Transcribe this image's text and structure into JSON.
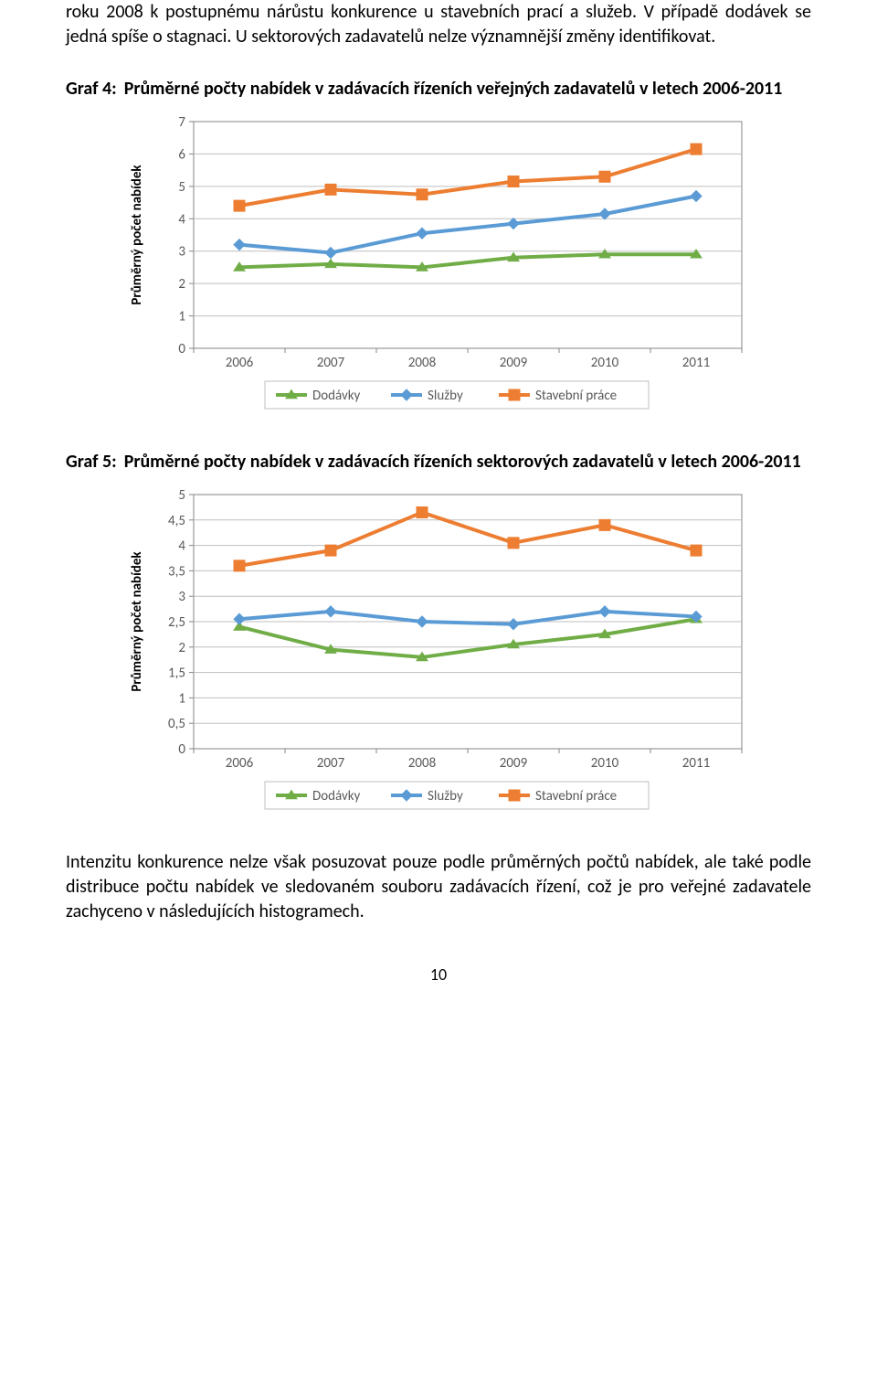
{
  "para1": "roku 2008 k postupnému nárůstu konkurence u stavebních prací a služeb. V případě dodávek se jedná spíše o stagnaci. U sektorových zadavatelů nelze významnější změny identifikovat.",
  "graf4": {
    "prefix": "Graf 4:",
    "rest": "Průměrné počty nabídek v zadávacích řízeních veřejných zadavatelů v letech 2006-2011"
  },
  "graf5": {
    "prefix": "Graf 5:",
    "rest": "Průměrné počty nabídek v zadávacích řízeních sektorových zadavatelů v letech 2006-2011"
  },
  "para2": "Intenzitu konkurence nelze však posuzovat pouze podle průměrných počtů nabídek, ale také podle distribuce počtu nabídek ve sledovaném souboru zadávacích řízení, což je pro veřejné zadavatele zachyceno v následujících histogramech.",
  "page_number": "10",
  "chart4": {
    "type": "line",
    "categories": [
      "2006",
      "2007",
      "2008",
      "2009",
      "2010",
      "2011"
    ],
    "series": [
      {
        "name": "Dodávky",
        "color": "#70ad47",
        "marker": "triangle",
        "values": [
          2.5,
          2.6,
          2.5,
          2.8,
          2.9,
          2.9
        ]
      },
      {
        "name": "Služby",
        "color": "#5b9bd5",
        "marker": "diamond",
        "values": [
          3.2,
          2.95,
          3.55,
          3.85,
          4.15,
          4.7
        ]
      },
      {
        "name": "Stavební práce",
        "color": "#ed7d31",
        "marker": "square",
        "values": [
          4.4,
          4.9,
          4.75,
          5.15,
          5.3,
          6.15
        ]
      }
    ],
    "y_axis_label": "Průměrný počet nabídek",
    "ylim": [
      0,
      7
    ],
    "ytick_step": 1,
    "yticks": [
      "0",
      "1",
      "2",
      "3",
      "4",
      "5",
      "6",
      "7"
    ],
    "background_color": "#ffffff",
    "plot_bg": "#ffffff",
    "grid_color": "#bfbfbf",
    "axis_color": "#868686",
    "legend_border": "#bfbfbf",
    "tick_font_color": "#595959",
    "line_width": 4,
    "marker_size": 8
  },
  "chart5": {
    "type": "line",
    "categories": [
      "2006",
      "2007",
      "2008",
      "2009",
      "2010",
      "2011"
    ],
    "series": [
      {
        "name": "Dodávky",
        "color": "#70ad47",
        "marker": "triangle",
        "values": [
          2.4,
          1.95,
          1.8,
          2.05,
          2.25,
          2.55
        ]
      },
      {
        "name": "Služby",
        "color": "#5b9bd5",
        "marker": "diamond",
        "values": [
          2.55,
          2.7,
          2.5,
          2.45,
          2.7,
          2.6
        ]
      },
      {
        "name": "Stavební práce",
        "color": "#ed7d31",
        "marker": "square",
        "values": [
          3.6,
          3.9,
          4.65,
          4.05,
          4.4,
          3.9
        ]
      }
    ],
    "y_axis_label": "Průměrný počet nabídek",
    "ylim": [
      0,
      5
    ],
    "ytick_step": 0.5,
    "yticks": [
      "0",
      "0,5",
      "1",
      "1,5",
      "2",
      "2,5",
      "3",
      "3,5",
      "4",
      "4,5",
      "5"
    ],
    "background_color": "#ffffff",
    "plot_bg": "#ffffff",
    "grid_color": "#bfbfbf",
    "axis_color": "#868686",
    "legend_border": "#bfbfbf",
    "tick_font_color": "#595959",
    "line_width": 4,
    "marker_size": 8
  }
}
